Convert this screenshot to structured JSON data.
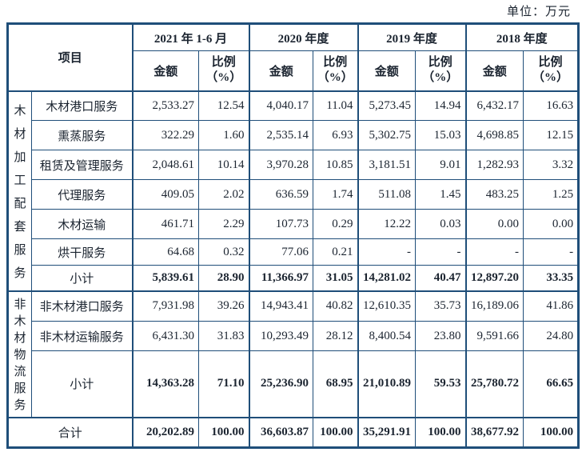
{
  "unit_label": "单位：万元",
  "table": {
    "item_header": "项目",
    "periods": [
      "2021 年 1-6 月",
      "2020 年度",
      "2019 年度",
      "2018 年度"
    ],
    "amount_header": "金额",
    "ratio_header_line1": "比例",
    "ratio_header_line2": "（%）",
    "border_color": "#1f4e79",
    "groups": [
      {
        "label": "木材加工配套服务",
        "rows": [
          {
            "label": "木材港口服务",
            "values": [
              "2,533.27",
              "12.54",
              "4,040.17",
              "11.04",
              "5,273.45",
              "14.94",
              "6,432.17",
              "16.63"
            ],
            "subtotal": false
          },
          {
            "label": "熏蒸服务",
            "values": [
              "322.29",
              "1.60",
              "2,535.14",
              "6.93",
              "5,302.75",
              "15.03",
              "4,698.85",
              "12.15"
            ],
            "subtotal": false
          },
          {
            "label": "租赁及管理服务",
            "values": [
              "2,048.61",
              "10.14",
              "3,970.28",
              "10.85",
              "3,181.51",
              "9.01",
              "1,282.93",
              "3.32"
            ],
            "subtotal": false
          },
          {
            "label": "代理服务",
            "values": [
              "409.05",
              "2.02",
              "636.59",
              "1.74",
              "511.08",
              "1.45",
              "483.25",
              "1.25"
            ],
            "subtotal": false
          },
          {
            "label": "木材运输",
            "values": [
              "461.71",
              "2.29",
              "107.73",
              "0.29",
              "12.22",
              "0.03",
              "0.00",
              "0.00"
            ],
            "subtotal": false
          },
          {
            "label": "烘干服务",
            "values": [
              "64.68",
              "0.32",
              "77.06",
              "0.21",
              "-",
              "-",
              "-",
              "-"
            ],
            "subtotal": false
          },
          {
            "label": "小计",
            "values": [
              "5,839.61",
              "28.90",
              "11,366.97",
              "31.05",
              "14,281.02",
              "40.47",
              "12,897.20",
              "33.35"
            ],
            "subtotal": true
          }
        ]
      },
      {
        "label": "非木材物流服务",
        "rows": [
          {
            "label": "非木材港口服务",
            "values": [
              "7,931.98",
              "39.26",
              "14,943.41",
              "40.82",
              "12,610.35",
              "35.73",
              "16,189.06",
              "41.86"
            ],
            "subtotal": false
          },
          {
            "label": "非木材运输服务",
            "values": [
              "6,431.30",
              "31.83",
              "10,293.49",
              "28.12",
              "8,400.54",
              "23.80",
              "9,591.66",
              "24.80"
            ],
            "subtotal": false
          },
          {
            "label": "小计",
            "values": [
              "14,363.28",
              "71.10",
              "25,236.90",
              "68.95",
              "21,010.89",
              "59.53",
              "25,780.72",
              "66.65"
            ],
            "subtotal": true
          }
        ]
      }
    ],
    "total": {
      "label": "合计",
      "values": [
        "20,202.89",
        "100.00",
        "36,603.87",
        "100.00",
        "35,291.91",
        "100.00",
        "38,677.92",
        "100.00"
      ]
    }
  }
}
